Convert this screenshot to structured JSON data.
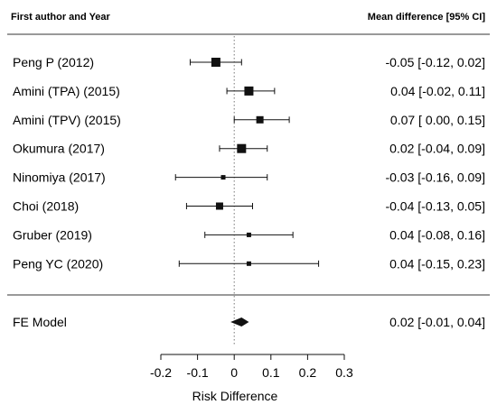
{
  "chart_data": {
    "type": "forest",
    "headers": {
      "left": "First author and Year",
      "right": "Mean difference [95% CI]"
    },
    "studies": [
      {
        "label": "Peng P (2012)",
        "estimate": -0.05,
        "lower": -0.12,
        "upper": 0.02,
        "text": "-0.05 [-0.12, 0.02]",
        "weight": "large"
      },
      {
        "label": "Amini (TPA) (2015)",
        "estimate": 0.04,
        "lower": -0.02,
        "upper": 0.11,
        "text": "0.04 [-0.02, 0.11]",
        "weight": "large"
      },
      {
        "label": "Amini (TPV) (2015)",
        "estimate": 0.07,
        "lower": 0.0,
        "upper": 0.15,
        "text": "0.07 [ 0.00, 0.15]",
        "weight": "medium"
      },
      {
        "label": "Okumura (2017)",
        "estimate": 0.02,
        "lower": -0.04,
        "upper": 0.09,
        "text": "0.02 [-0.04, 0.09]",
        "weight": "large"
      },
      {
        "label": "Ninomiya (2017)",
        "estimate": -0.03,
        "lower": -0.16,
        "upper": 0.09,
        "text": "-0.03 [-0.16, 0.09]",
        "weight": "small"
      },
      {
        "label": "Choi (2018)",
        "estimate": -0.04,
        "lower": -0.13,
        "upper": 0.05,
        "text": "-0.04 [-0.13, 0.05]",
        "weight": "medium"
      },
      {
        "label": "Gruber (2019)",
        "estimate": 0.04,
        "lower": -0.08,
        "upper": 0.16,
        "text": "0.04 [-0.08, 0.16]",
        "weight": "small"
      },
      {
        "label": "Peng YC (2020)",
        "estimate": 0.04,
        "lower": -0.15,
        "upper": 0.23,
        "text": "0.04 [-0.15, 0.23]",
        "weight": "small"
      }
    ],
    "summary": {
      "label": "FE Model",
      "estimate": 0.02,
      "lower": -0.01,
      "upper": 0.04,
      "text": "0.02 [-0.01, 0.04]"
    },
    "xlabel": "Risk Difference",
    "xticks": [
      -0.2,
      -0.1,
      0,
      0.1,
      0.2,
      0.3
    ],
    "xtick_labels": [
      "-0.2",
      "-0.1",
      "0",
      "0.1",
      "0.2",
      "0.3"
    ],
    "xlim": [
      -0.2,
      0.3
    ],
    "reference_line": 0,
    "colors": {
      "ink": "#111111",
      "reference": "#777777"
    }
  }
}
